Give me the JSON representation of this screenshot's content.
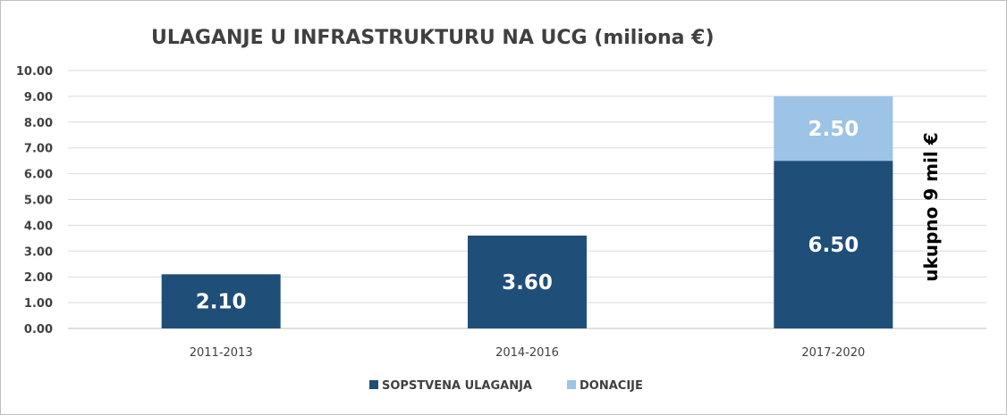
{
  "chart_data": {
    "type": "bar",
    "stacked": true,
    "title": "ULAGANJE U INFRASTRUKTURU NA UCG (miliona €)",
    "categories": [
      "2011-2013",
      "2014-2016",
      "2017-2020"
    ],
    "series": [
      {
        "name": "SOPSTVENA ULAGANJA",
        "values": [
          2.1,
          3.6,
          6.5
        ],
        "labels": [
          "2.10",
          "3.60",
          "6.50"
        ],
        "color": "#1f4e79"
      },
      {
        "name": "DONACIJE",
        "values": [
          null,
          null,
          2.5
        ],
        "labels": [
          null,
          null,
          "2.50"
        ],
        "color": "#9dc3e6"
      }
    ],
    "ylim": [
      0,
      10
    ],
    "yticks": [
      "0.00",
      "1.00",
      "2.00",
      "3.00",
      "4.00",
      "5.00",
      "6.00",
      "7.00",
      "8.00",
      "9.00",
      "10.00"
    ],
    "grid": true,
    "legend": "bottom",
    "annotation": "ukupno 9 mil €"
  }
}
